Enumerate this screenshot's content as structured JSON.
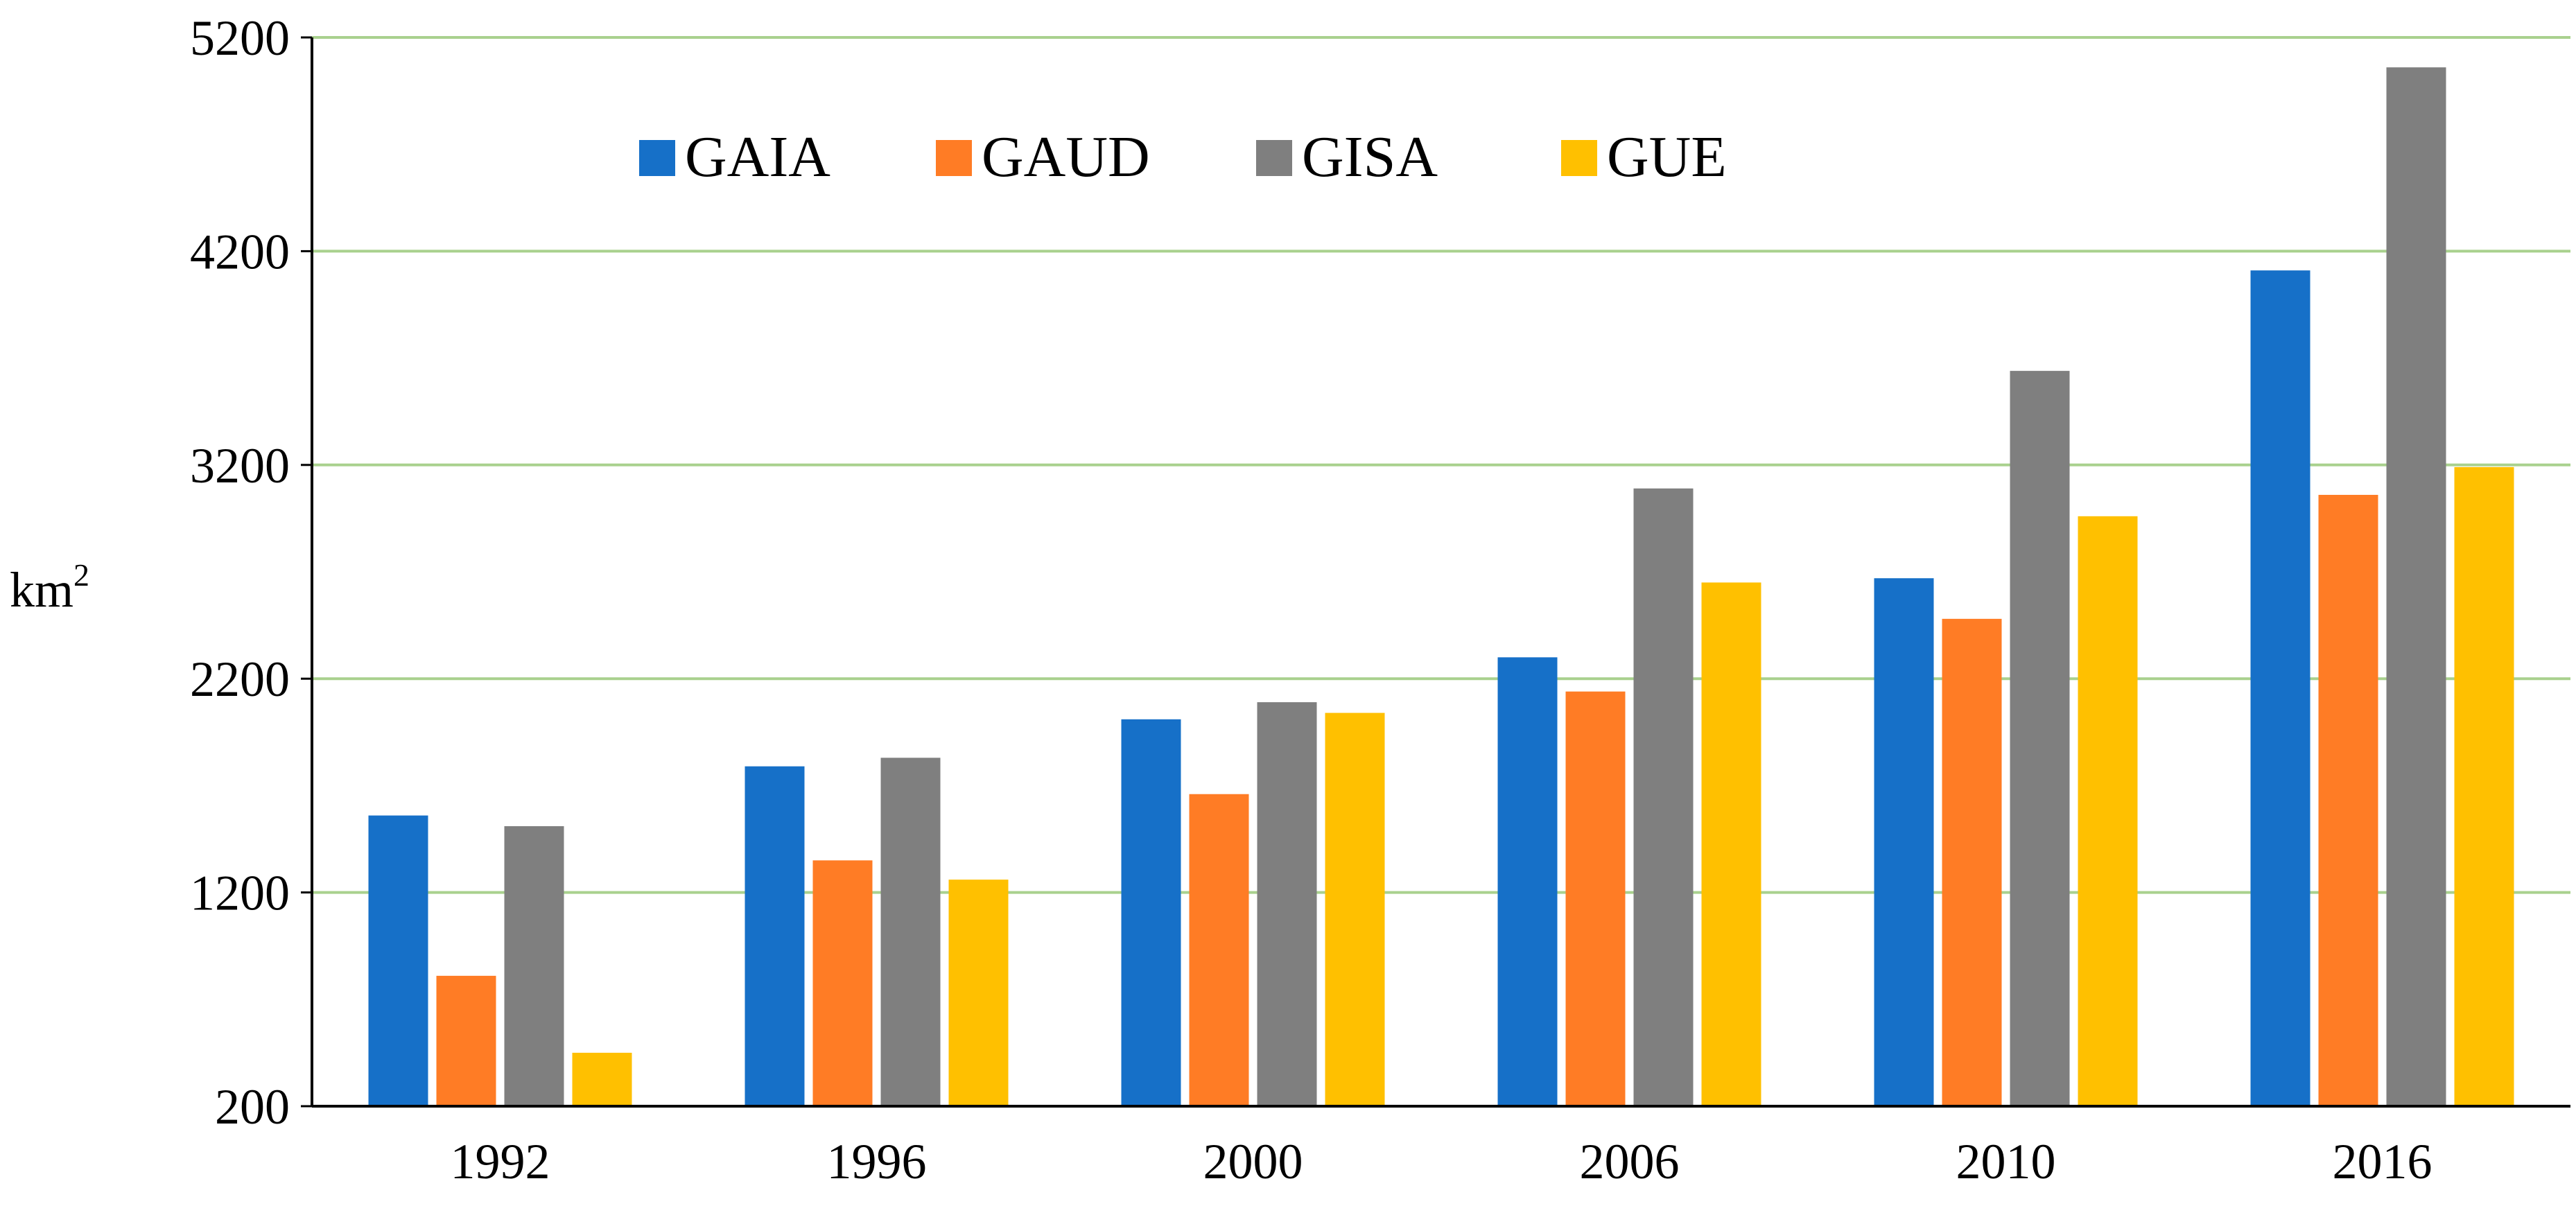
{
  "chart_data": {
    "type": "bar",
    "title": "",
    "xlabel": "",
    "ylabel": "km",
    "ylabel_superscript": "2",
    "categories": [
      "1992",
      "1996",
      "2000",
      "2006",
      "2010",
      "2016"
    ],
    "ylim": [
      200,
      5200
    ],
    "yticks": [
      200,
      1200,
      2200,
      3200,
      4200,
      5200
    ],
    "grid": true,
    "legend_position": "top-left",
    "series": [
      {
        "name": "GAIA",
        "color": "#1670C8",
        "values": [
          1560,
          1790,
          2010,
          2300,
          2670,
          4110
        ]
      },
      {
        "name": "GAUD",
        "color": "#FF7C25",
        "values": [
          810,
          1350,
          1660,
          2140,
          2480,
          3060
        ]
      },
      {
        "name": "GISA",
        "color": "#7F7F7F",
        "values": [
          1510,
          1830,
          2090,
          3090,
          3640,
          5060
        ]
      },
      {
        "name": "GUE",
        "color": "#FFC000",
        "values": [
          450,
          1260,
          2040,
          2650,
          2960,
          3190
        ]
      }
    ],
    "gridline_color": "#A9D18E",
    "axis_color": "#000000"
  }
}
